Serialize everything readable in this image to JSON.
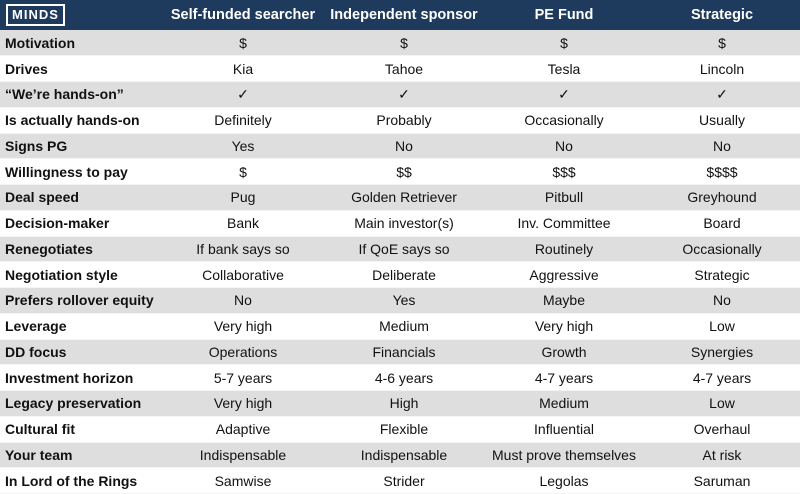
{
  "header": {
    "logo": "MINDS"
  },
  "table": {
    "columns": [
      "Self-funded searcher",
      "Independent sponsor",
      "PE Fund",
      "Strategic"
    ],
    "rows": [
      [
        "Motivation",
        "$",
        "$",
        "$",
        "$"
      ],
      [
        "Drives",
        "Kia",
        "Tahoe",
        "Tesla",
        "Lincoln"
      ],
      [
        "“We’re hands-on”",
        "✓",
        "✓",
        "✓",
        "✓"
      ],
      [
        "Is actually hands-on",
        "Definitely",
        "Probably",
        "Occasionally",
        "Usually"
      ],
      [
        "Signs PG",
        "Yes",
        "No",
        "No",
        "No"
      ],
      [
        "Willingness to pay",
        "$",
        "$$",
        "$$$",
        "$$$$"
      ],
      [
        "Deal speed",
        "Pug",
        "Golden Retriever",
        "Pitbull",
        "Greyhound"
      ],
      [
        "Decision-maker",
        "Bank",
        "Main investor(s)",
        "Inv. Committee",
        "Board"
      ],
      [
        "Renegotiates",
        "If bank says so",
        "If QoE says so",
        "Routinely",
        "Occasionally"
      ],
      [
        "Negotiation style",
        "Collaborative",
        "Deliberate",
        "Aggressive",
        "Strategic"
      ],
      [
        "Prefers rollover equity",
        "No",
        "Yes",
        "Maybe",
        "No"
      ],
      [
        "Leverage",
        "Very high",
        "Medium",
        "Very high",
        "Low"
      ],
      [
        "DD focus",
        "Operations",
        "Financials",
        "Growth",
        "Synergies"
      ],
      [
        "Investment horizon",
        "5-7 years",
        "4-6 years",
        "4-7 years",
        "4-7 years"
      ],
      [
        "Legacy preservation",
        "Very high",
        "High",
        "Medium",
        "Low"
      ],
      [
        "Cultural fit",
        "Adaptive",
        "Flexible",
        "Influential",
        "Overhaul"
      ],
      [
        "Your team",
        "Indispensable",
        "Indispensable",
        "Must prove themselves",
        "At risk"
      ],
      [
        "In Lord of the Rings",
        "Samwise",
        "Strider",
        "Legolas",
        "Saruman"
      ]
    ]
  }
}
